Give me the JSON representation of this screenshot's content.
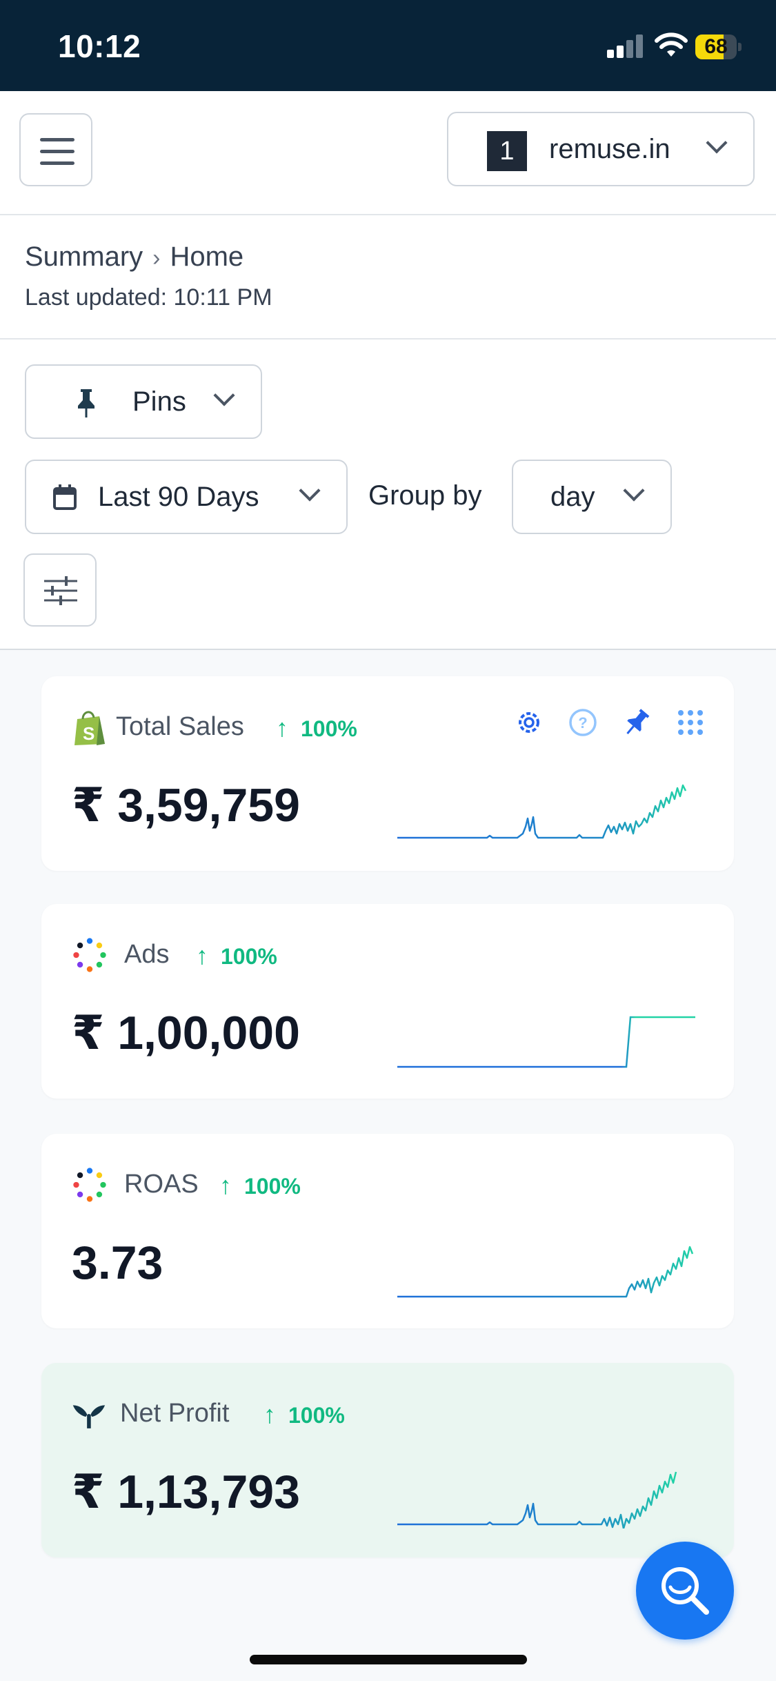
{
  "status_bar": {
    "time": "10:12",
    "battery": "68",
    "battery_level": 0.68
  },
  "header": {
    "store_badge": "1",
    "store_name": "remuse.in"
  },
  "breadcrumb": {
    "parent": "Summary",
    "current": "Home",
    "last_updated": "Last updated: 10:11 PM"
  },
  "filters": {
    "pins_label": "Pins",
    "date_range": "Last 90 Days",
    "group_by_label": "Group by",
    "group_by_value": "day"
  },
  "cards": [
    {
      "title": "Total Sales",
      "delta": "100%",
      "value": "₹ 3,59,759",
      "source_icon": "shopify-icon"
    },
    {
      "title": "Ads",
      "delta": "100%",
      "value": "₹ 1,00,000",
      "source_icon": "multi-dot-icon"
    },
    {
      "title": "ROAS",
      "delta": "100%",
      "value": "3.73",
      "source_icon": "multi-dot-icon"
    },
    {
      "title": "Net Profit",
      "delta": "100%",
      "value": "₹ 1,13,793",
      "source_icon": "triple-whale-icon"
    }
  ],
  "colors": {
    "accent": "#1877f2",
    "positive": "#10b981",
    "status_bar": "#082338",
    "net_profit_bg": "#eaf6f1"
  },
  "icons": {
    "menu": "hamburger-icon",
    "pin": "pin-icon",
    "calendar": "calendar-icon",
    "sliders": "sliders-icon",
    "search": "search-icon",
    "gear": "gear-icon",
    "help": "help-icon",
    "grid": "grid-dots-icon"
  }
}
